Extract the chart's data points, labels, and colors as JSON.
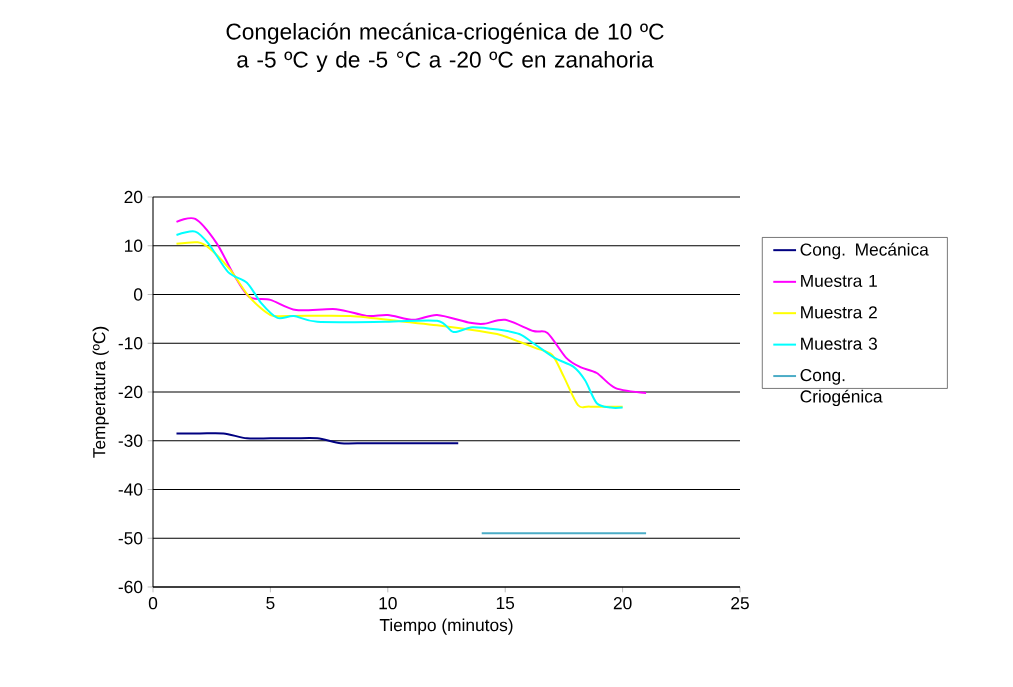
{
  "chart_data": {
    "type": "line",
    "title": "Congelación mecánica-criogénica de 10 ºC a -5 ºC y de -5 °C a -20 ºC en zanahoria",
    "xlabel": "Tiempo (minutos)",
    "ylabel": "Temperatura (ºC)",
    "xlim": [
      0,
      25
    ],
    "xticks": [
      0,
      5,
      10,
      15,
      20,
      25
    ],
    "ylim": [
      -60,
      20
    ],
    "yticks": [
      -60,
      -50,
      -40,
      -30,
      -20,
      -10,
      0,
      10,
      20
    ],
    "grid": "y",
    "legend": "right",
    "marker": "none",
    "line_style": "solid",
    "series": [
      {
        "name": "Cong. Mecánica",
        "color": "#000080",
        "x": [
          1,
          2,
          3,
          4,
          5,
          6,
          7,
          8,
          9,
          10,
          11,
          12,
          13
        ],
        "values": [
          -28.5,
          -28.5,
          -28.5,
          -29.5,
          -29.5,
          -29.5,
          -29.5,
          -30.5,
          -30.5,
          -30.5,
          -30.5,
          -30.5,
          -30.5
        ]
      },
      {
        "name": "Muestra 1",
        "color": "#ff00ff",
        "x": [
          1,
          1.8,
          2.7,
          3.4,
          4.1,
          5,
          6.1,
          7.8,
          9.1,
          10,
          11.1,
          12.1,
          13.5,
          14.1,
          15,
          16.2,
          16.8,
          17.6,
          18.2,
          18.9,
          19.7,
          21
        ],
        "values": [
          14.9,
          15.5,
          10.6,
          4.4,
          -0.5,
          -1.1,
          -3.2,
          -3,
          -4.4,
          -4.2,
          -5.2,
          -4.2,
          -5.8,
          -6,
          -5.2,
          -7.5,
          -7.9,
          -13,
          -14.9,
          -16.1,
          -19.2,
          -20.2
        ]
      },
      {
        "name": "Muestra  2",
        "color": "#ffff00",
        "x": [
          1,
          1.9,
          2.4,
          3.3,
          4.1,
          5,
          5.8,
          8.4,
          10.7,
          12.1,
          13.9,
          14.8,
          15.6,
          16.3,
          17,
          17.5,
          18.1,
          18.6,
          20
        ],
        "values": [
          10.4,
          10.7,
          9.5,
          5,
          -0.5,
          -4.2,
          -4.4,
          -4.4,
          -5.6,
          -6.3,
          -7.5,
          -8.3,
          -9.7,
          -11,
          -12.4,
          -16.9,
          -22.7,
          -23,
          -23
        ]
      },
      {
        "name": "Muestra 3",
        "color": "#00ffff",
        "x": [
          1,
          1.8,
          2.4,
          3.2,
          4,
          4.6,
          5.3,
          6,
          7,
          9.9,
          12.1,
          12.8,
          13.6,
          14.7,
          15.6,
          16.2,
          17.1,
          17.9,
          18.4,
          18.9,
          19.5,
          20
        ],
        "values": [
          12.2,
          12.9,
          10.2,
          4.6,
          2.4,
          -1.7,
          -4.8,
          -4.4,
          -5.6,
          -5.6,
          -5.4,
          -7.7,
          -6.7,
          -7.2,
          -8.1,
          -10,
          -13,
          -14.8,
          -17.6,
          -22.3,
          -23.2,
          -23.2
        ]
      },
      {
        "name": "Cong. Criogénica",
        "color": "#4bacc6",
        "x": [
          14,
          21
        ],
        "values": [
          -49,
          -49
        ]
      }
    ]
  }
}
